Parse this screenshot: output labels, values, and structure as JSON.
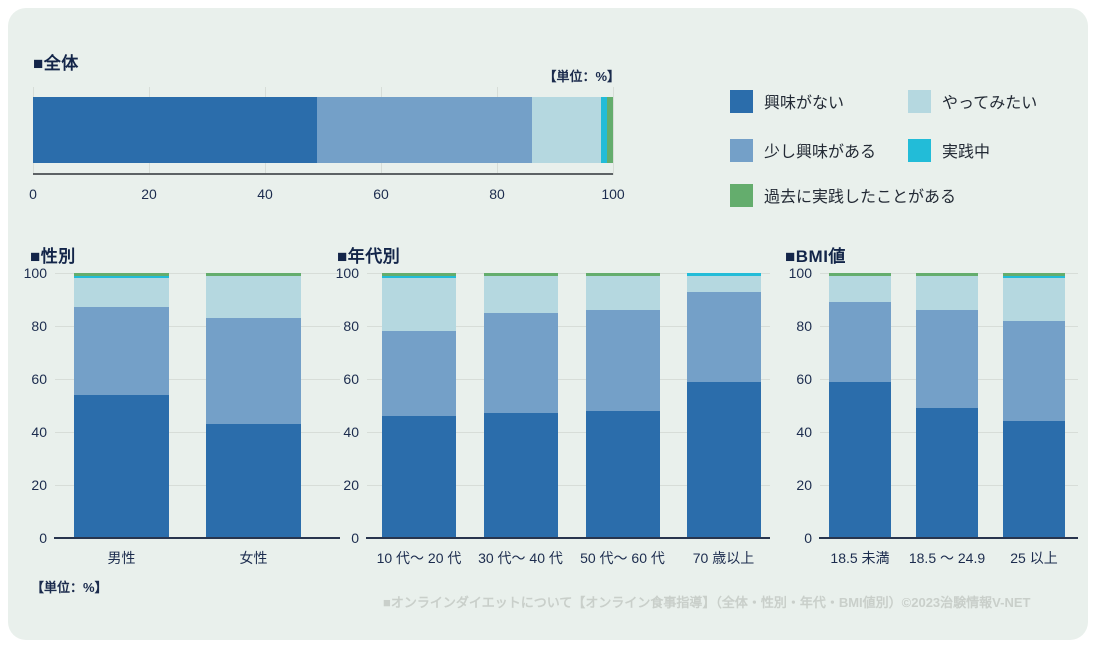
{
  "page": {
    "unit_label": "【単位：%】",
    "footer": "■オンラインダイエットについて【オンライン食事指導】（全体・性別・年代・BMI値別）©2023治験情報V-NET"
  },
  "colors": {
    "興味がない": "#2b6dab",
    "少し興味がある": "#74a0c8",
    "やってみたい": "#b5d8e0",
    "実践中": "#22bcd8",
    "過去に実践したことがある": "#64ad6d",
    "background": "#e9f0ec",
    "title_text": "#132549",
    "tick_text": "#1c2c4e",
    "gridline": "#d7ddd8",
    "footer_text": "#c9cfca"
  },
  "legend": {
    "position": "right",
    "items": [
      {
        "label": "興味がない"
      },
      {
        "label": "やってみたい"
      },
      {
        "label": "少し興味がある"
      },
      {
        "label": "実践中"
      },
      {
        "label": "過去に実践したことがある"
      }
    ]
  },
  "chart_data": [
    {
      "type": "bar",
      "stacked": true,
      "orientation": "horizontal",
      "title": "■全体",
      "unit": "%",
      "categories": [
        "全体"
      ],
      "xlim": [
        0,
        100
      ],
      "xticks": [
        0,
        20,
        40,
        60,
        80,
        100
      ],
      "grid": true,
      "series": [
        {
          "name": "興味がない",
          "values": [
            49
          ]
        },
        {
          "name": "少し興味がある",
          "values": [
            37
          ]
        },
        {
          "name": "やってみたい",
          "values": [
            12
          ]
        },
        {
          "name": "実践中",
          "values": [
            1
          ]
        },
        {
          "name": "過去に実践したことがある",
          "values": [
            1
          ]
        }
      ]
    },
    {
      "type": "bar",
      "stacked": true,
      "orientation": "vertical",
      "title": "■性別",
      "unit": "%",
      "categories": [
        "男性",
        "女性"
      ],
      "ylim": [
        0,
        100
      ],
      "yticks": [
        0,
        20,
        40,
        60,
        80,
        100
      ],
      "grid": true,
      "series": [
        {
          "name": "興味がない",
          "values": [
            54,
            43
          ]
        },
        {
          "name": "少し興味がある",
          "values": [
            33,
            40
          ]
        },
        {
          "name": "やってみたい",
          "values": [
            11,
            16
          ]
        },
        {
          "name": "実践中",
          "values": [
            1,
            0
          ]
        },
        {
          "name": "過去に実践したことがある",
          "values": [
            1,
            1
          ]
        }
      ]
    },
    {
      "type": "bar",
      "stacked": true,
      "orientation": "vertical",
      "title": "■年代別",
      "unit": "%",
      "categories": [
        "10 代〜 20 代",
        "30 代〜 40 代",
        "50 代〜 60 代",
        "70 歳以上"
      ],
      "ylim": [
        0,
        100
      ],
      "yticks": [
        0,
        20,
        40,
        60,
        80,
        100
      ],
      "grid": true,
      "series": [
        {
          "name": "興味がない",
          "values": [
            46,
            47,
            48,
            59
          ]
        },
        {
          "name": "少し興味がある",
          "values": [
            32,
            38,
            38,
            34
          ]
        },
        {
          "name": "やってみたい",
          "values": [
            20,
            14,
            13,
            6
          ]
        },
        {
          "name": "実践中",
          "values": [
            1,
            0,
            0,
            1
          ]
        },
        {
          "name": "過去に実践したことがある",
          "values": [
            1,
            1,
            1,
            0
          ]
        }
      ]
    },
    {
      "type": "bar",
      "stacked": true,
      "orientation": "vertical",
      "title": "■BMI値",
      "unit": "%",
      "categories": [
        "18.5 未満",
        "18.5 〜 24.9",
        "25 以上"
      ],
      "ylim": [
        0,
        100
      ],
      "yticks": [
        0,
        20,
        40,
        60,
        80,
        100
      ],
      "grid": true,
      "series": [
        {
          "name": "興味がない",
          "values": [
            59,
            49,
            44
          ]
        },
        {
          "name": "少し興味がある",
          "values": [
            30,
            37,
            38
          ]
        },
        {
          "name": "やってみたい",
          "values": [
            10,
            13,
            16
          ]
        },
        {
          "name": "実践中",
          "values": [
            0,
            0,
            1
          ]
        },
        {
          "name": "過去に実践したことがある",
          "values": [
            1,
            1,
            1
          ]
        }
      ]
    }
  ]
}
